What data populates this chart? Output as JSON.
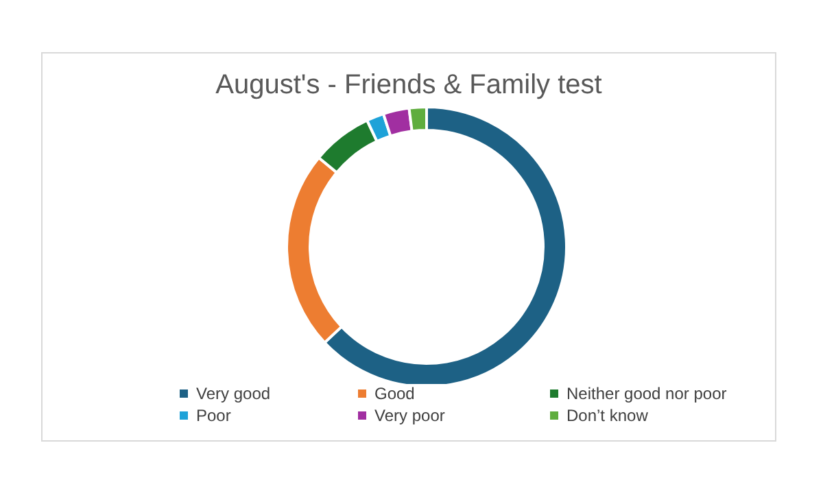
{
  "chart_data": {
    "type": "donut",
    "title": "August's - Friends & Family test",
    "categories": [
      "Very good",
      "Good",
      "Neither good nor poor",
      "Poor",
      "Very poor",
      "Don’t know"
    ],
    "values": [
      63,
      23,
      7,
      2,
      3,
      2
    ],
    "colors": [
      "#1d6185",
      "#ed7d31",
      "#1e7b2e",
      "#1ea2d8",
      "#a12fa1",
      "#5fad3e"
    ],
    "legend": "bottom"
  }
}
